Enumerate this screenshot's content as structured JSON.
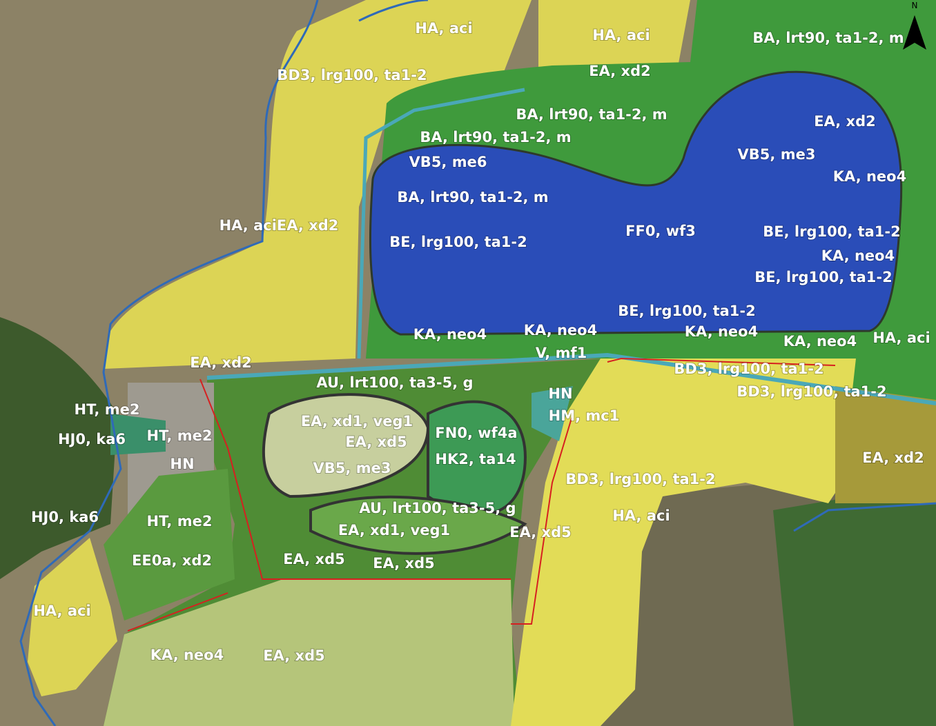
{
  "labels": [
    {
      "text": "HA, aci"
    },
    {
      "text": "HA, aci"
    },
    {
      "text": "BA, lrt90, ta1-2, m"
    },
    {
      "text": "BD3, lrg100, ta1-2"
    },
    {
      "text": "EA, xd2"
    },
    {
      "text": "BA, lrt90, ta1-2, m"
    },
    {
      "text": "EA, xd2"
    },
    {
      "text": "BA, lrt90, ta1-2, m"
    },
    {
      "text": "VB5, me6"
    },
    {
      "text": "VB5, me3"
    },
    {
      "text": "KA, neo4"
    },
    {
      "text": "BA, lrt90, ta1-2, m"
    },
    {
      "text": "HA, aciEA, xd2"
    },
    {
      "text": "FF0, wf3"
    },
    {
      "text": "BE, lrg100, ta1-2"
    },
    {
      "text": "BE, lrg100, ta1-2"
    },
    {
      "text": "KA, neo4"
    },
    {
      "text": "BE, lrg100, ta1-2"
    },
    {
      "text": "BE, lrg100, ta1-2"
    },
    {
      "text": "KA, neo4"
    },
    {
      "text": "KA, neo4"
    },
    {
      "text": "KA, neo4"
    },
    {
      "text": "KA, neo4"
    },
    {
      "text": "HA, aci"
    },
    {
      "text": "V, mf1"
    },
    {
      "text": "EA, xd2"
    },
    {
      "text": "BD3, lrg100, ta1-2"
    },
    {
      "text": "AU, lrt100, ta3-5, g"
    },
    {
      "text": "BD3, lrg100, ta1-2"
    },
    {
      "text": "HN"
    },
    {
      "text": "HT, me2"
    },
    {
      "text": "HM, mc1"
    },
    {
      "text": "EA, xd1, veg1"
    },
    {
      "text": "FN0, wf4a"
    },
    {
      "text": "HJ0, ka6"
    },
    {
      "text": "HT, me2"
    },
    {
      "text": "EA, xd5"
    },
    {
      "text": "HK2, ta14"
    },
    {
      "text": "EA, xd2"
    },
    {
      "text": "HN"
    },
    {
      "text": "VB5, me3"
    },
    {
      "text": "BD3, lrg100, ta1-2"
    },
    {
      "text": "AU, lrt100, ta3-5, g"
    },
    {
      "text": "HA, aci"
    },
    {
      "text": "HJ0, ka6"
    },
    {
      "text": "HT, me2"
    },
    {
      "text": "EA, xd1, veg1"
    },
    {
      "text": "EA, xd5"
    },
    {
      "text": "EA, xd5"
    },
    {
      "text": "EE0a, xd2"
    },
    {
      "text": "EA, xd5"
    },
    {
      "text": "HA, aci"
    },
    {
      "text": "KA, neo4"
    },
    {
      "text": "EA, xd5"
    }
  ],
  "north_arrow": {
    "label": "N"
  }
}
